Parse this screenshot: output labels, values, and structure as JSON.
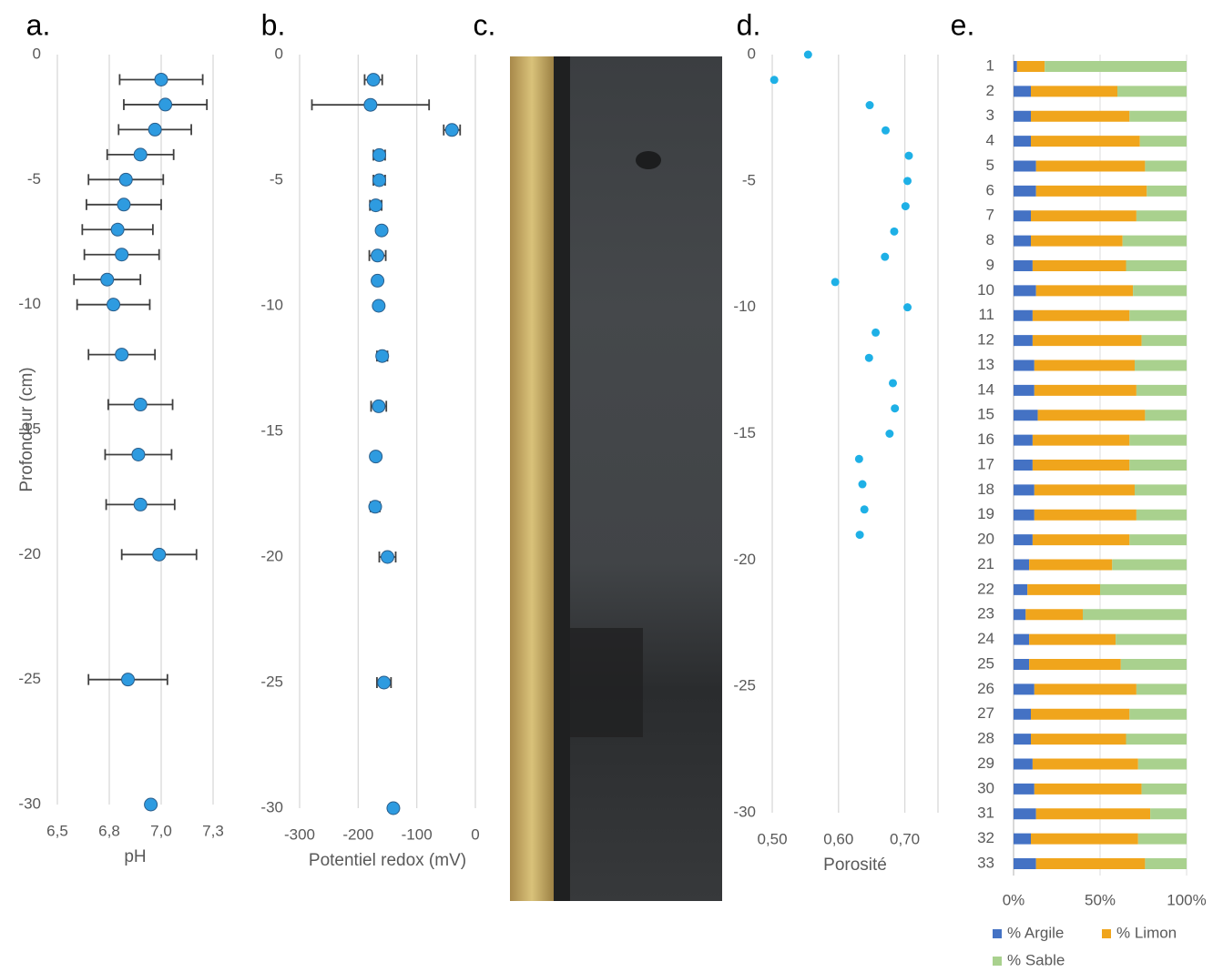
{
  "chart_data": [
    {
      "type": "scatter",
      "panel": "a.",
      "xlabel": "pH",
      "ylabel": "Profondeur (cm)",
      "color": "#2e9be0",
      "x": [
        7.0,
        7.02,
        6.97,
        6.9,
        6.83,
        6.82,
        6.79,
        6.81,
        6.74,
        6.77,
        6.81,
        6.9,
        6.89,
        6.9,
        6.99,
        6.84,
        6.95
      ],
      "xerr": [
        0.2,
        0.2,
        0.175,
        0.16,
        0.18,
        0.18,
        0.17,
        0.18,
        0.16,
        0.175,
        0.16,
        0.155,
        0.16,
        0.165,
        0.18,
        0.19,
        null
      ],
      "y": [
        -1,
        -2,
        -3,
        -4,
        -5,
        -6,
        -7,
        -8,
        -9,
        -10,
        -12,
        -14,
        -16,
        -18,
        -20,
        -25,
        -30
      ],
      "xlim": [
        6.5,
        7.25
      ],
      "xticks": [
        {
          "value": 6.5,
          "label": "6,5"
        },
        {
          "value": 6.75,
          "label": "6,8"
        },
        {
          "value": 7.0,
          "label": "7,0"
        },
        {
          "value": 7.25,
          "label": "7,3"
        }
      ],
      "ylim": [
        -30,
        0
      ],
      "yticks": [
        0,
        -5,
        -10,
        -15,
        -20,
        -25,
        -30
      ],
      "grid": true
    },
    {
      "type": "scatter",
      "panel": "b.",
      "xlabel": "Potentiel redox (mV)",
      "color": "#2e9be0",
      "x": [
        -174,
        -179,
        -40,
        -164,
        -164,
        -170,
        -160,
        -167,
        -167,
        -165,
        -159,
        -165,
        -170,
        -171,
        -150,
        -156,
        -140
      ],
      "xerr": [
        15,
        100,
        14,
        10,
        10,
        10,
        null,
        14,
        null,
        null,
        9,
        13,
        null,
        8,
        14,
        12,
        null
      ],
      "y": [
        -1,
        -2,
        -3,
        -4,
        -5,
        -6,
        -7,
        -8,
        -9,
        -10,
        -12,
        -14,
        -16,
        -18,
        -20,
        -25,
        -30
      ],
      "xlim": [
        -300,
        0
      ],
      "xticks": [
        -300,
        -200,
        -100,
        0
      ],
      "ylim": [
        -30,
        0
      ],
      "yticks": [
        0,
        -5,
        -10,
        -15,
        -20,
        -25,
        -30
      ],
      "grid": true
    },
    {
      "type": "image",
      "panel": "c."
    },
    {
      "type": "scatter",
      "panel": "d.",
      "xlabel": "Porosité",
      "color": "#1eb0e6",
      "x": [
        0.554,
        0.503,
        0.647,
        0.671,
        0.706,
        0.704,
        0.701,
        0.684,
        0.67,
        0.595,
        0.704,
        0.656,
        0.646,
        0.682,
        0.685,
        0.677,
        0.631,
        0.636,
        0.639,
        0.632
      ],
      "y": [
        0,
        -1,
        -2,
        -3,
        -4,
        -5,
        -6,
        -7,
        -8,
        -9,
        -10,
        -11,
        -12,
        -13,
        -14,
        -15,
        -16,
        -17,
        -18,
        -19
      ],
      "xlim": [
        0.5,
        0.75
      ],
      "xticks": [
        {
          "value": 0.5,
          "label": "0,50"
        },
        {
          "value": 0.6,
          "label": "0,60"
        },
        {
          "value": 0.7,
          "label": "0,70"
        }
      ],
      "ylim": [
        -30,
        0
      ],
      "yticks": [
        0,
        -5,
        -10,
        -15,
        -20,
        -25,
        -30
      ],
      "grid": true
    },
    {
      "type": "stacked_bar_h",
      "panel": "e.",
      "categories": [
        "1",
        "2",
        "3",
        "4",
        "5",
        "6",
        "7",
        "8",
        "9",
        "10",
        "11",
        "12",
        "13",
        "14",
        "15",
        "16",
        "17",
        "18",
        "19",
        "20",
        "21",
        "22",
        "23",
        "24",
        "25",
        "26",
        "27",
        "28",
        "29",
        "30",
        "31",
        "32",
        "33"
      ],
      "series": [
        {
          "name": "% Argile",
          "color": "#4472c4",
          "values": [
            2,
            10,
            10,
            10,
            13,
            13,
            10,
            10,
            11,
            13,
            11,
            11,
            12,
            12,
            14,
            11,
            11,
            12,
            12,
            11,
            9,
            8,
            7,
            9,
            9,
            12,
            10,
            10,
            11,
            12,
            13,
            10,
            13
          ]
        },
        {
          "name": "% Limon",
          "color": "#f0a51c",
          "values": [
            16,
            50,
            57,
            63,
            63,
            64,
            61,
            53,
            54,
            56,
            56,
            63,
            58,
            59,
            62,
            56,
            56,
            58,
            59,
            56,
            48,
            42,
            33,
            50,
            53,
            59,
            57,
            55,
            61,
            62,
            66,
            62,
            63
          ]
        },
        {
          "name": "% Sable",
          "color": "#a9d18e",
          "values": [
            82,
            40,
            33,
            27,
            24,
            23,
            29,
            37,
            35,
            31,
            33,
            26,
            30,
            29,
            24,
            33,
            33,
            30,
            29,
            33,
            43,
            50,
            60,
            41,
            38,
            29,
            33,
            35,
            28,
            26,
            21,
            28,
            24
          ]
        }
      ],
      "xlim": [
        0,
        100
      ],
      "xticks": [
        {
          "value": 0,
          "label": "0%"
        },
        {
          "value": 50,
          "label": "50%"
        },
        {
          "value": 100,
          "label": "100%"
        }
      ],
      "grid": true
    }
  ]
}
